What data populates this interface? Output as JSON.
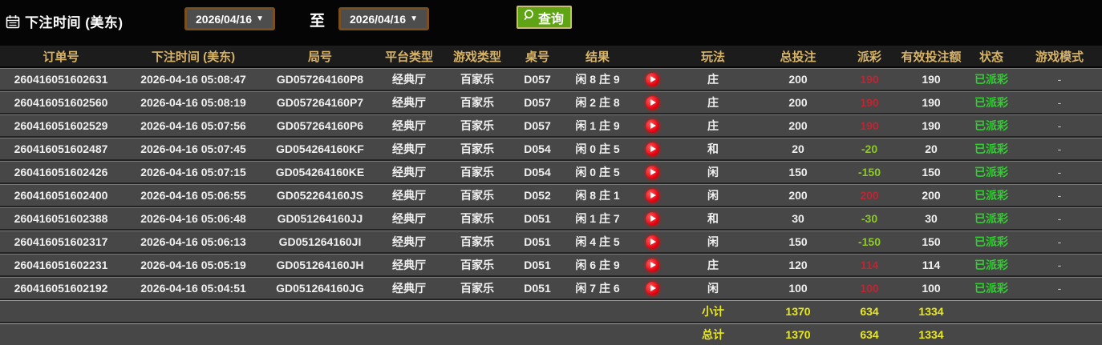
{
  "toolbar": {
    "label": "下注时间 (美东)",
    "date_from": "2026/04/16",
    "to_label": "至",
    "date_to": "2026/04/16",
    "search_label": "查询"
  },
  "table": {
    "columns": [
      {
        "key": "order",
        "label": "订单号"
      },
      {
        "key": "time",
        "label": "下注时间 (美东)"
      },
      {
        "key": "round",
        "label": "局号"
      },
      {
        "key": "platform",
        "label": "平台类型"
      },
      {
        "key": "game",
        "label": "游戏类型"
      },
      {
        "key": "table_no",
        "label": "桌号"
      },
      {
        "key": "result",
        "label": "结果"
      },
      {
        "key": "play",
        "label": ""
      },
      {
        "key": "bet_type",
        "label": "玩法"
      },
      {
        "key": "total_bet",
        "label": "总投注"
      },
      {
        "key": "payout",
        "label": "派彩"
      },
      {
        "key": "valid_bet",
        "label": "有效投注额"
      },
      {
        "key": "status",
        "label": "状态"
      },
      {
        "key": "mode",
        "label": "游戏模式"
      }
    ],
    "rows": [
      {
        "order": "260416051602631",
        "time": "2026-04-16 05:08:47",
        "round": "GD057264160P8",
        "platform": "经典厅",
        "game": "百家乐",
        "table_no": "D057",
        "result": "闲 8 庄 9",
        "bet_type": "庄",
        "total_bet": "200",
        "payout": "190",
        "valid_bet": "190",
        "status": "已派彩",
        "mode": "-"
      },
      {
        "order": "260416051602560",
        "time": "2026-04-16 05:08:19",
        "round": "GD057264160P7",
        "platform": "经典厅",
        "game": "百家乐",
        "table_no": "D057",
        "result": "闲 2 庄 8",
        "bet_type": "庄",
        "total_bet": "200",
        "payout": "190",
        "valid_bet": "190",
        "status": "已派彩",
        "mode": "-"
      },
      {
        "order": "260416051602529",
        "time": "2026-04-16 05:07:56",
        "round": "GD057264160P6",
        "platform": "经典厅",
        "game": "百家乐",
        "table_no": "D057",
        "result": "闲 1 庄 9",
        "bet_type": "庄",
        "total_bet": "200",
        "payout": "190",
        "valid_bet": "190",
        "status": "已派彩",
        "mode": "-"
      },
      {
        "order": "260416051602487",
        "time": "2026-04-16 05:07:45",
        "round": "GD054264160KF",
        "platform": "经典厅",
        "game": "百家乐",
        "table_no": "D054",
        "result": "闲 0 庄 5",
        "bet_type": "和",
        "total_bet": "20",
        "payout": "-20",
        "valid_bet": "20",
        "status": "已派彩",
        "mode": "-"
      },
      {
        "order": "260416051602426",
        "time": "2026-04-16 05:07:15",
        "round": "GD054264160KE",
        "platform": "经典厅",
        "game": "百家乐",
        "table_no": "D054",
        "result": "闲 0 庄 5",
        "bet_type": "闲",
        "total_bet": "150",
        "payout": "-150",
        "valid_bet": "150",
        "status": "已派彩",
        "mode": "-"
      },
      {
        "order": "260416051602400",
        "time": "2026-04-16 05:06:55",
        "round": "GD052264160JS",
        "platform": "经典厅",
        "game": "百家乐",
        "table_no": "D052",
        "result": "闲 8 庄 1",
        "bet_type": "闲",
        "total_bet": "200",
        "payout": "200",
        "valid_bet": "200",
        "status": "已派彩",
        "mode": "-"
      },
      {
        "order": "260416051602388",
        "time": "2026-04-16 05:06:48",
        "round": "GD051264160JJ",
        "platform": "经典厅",
        "game": "百家乐",
        "table_no": "D051",
        "result": "闲 1 庄 7",
        "bet_type": "和",
        "total_bet": "30",
        "payout": "-30",
        "valid_bet": "30",
        "status": "已派彩",
        "mode": "-"
      },
      {
        "order": "260416051602317",
        "time": "2026-04-16 05:06:13",
        "round": "GD051264160JI",
        "platform": "经典厅",
        "game": "百家乐",
        "table_no": "D051",
        "result": "闲 4 庄 5",
        "bet_type": "闲",
        "total_bet": "150",
        "payout": "-150",
        "valid_bet": "150",
        "status": "已派彩",
        "mode": "-"
      },
      {
        "order": "260416051602231",
        "time": "2026-04-16 05:05:19",
        "round": "GD051264160JH",
        "platform": "经典厅",
        "game": "百家乐",
        "table_no": "D051",
        "result": "闲 6 庄 9",
        "bet_type": "庄",
        "total_bet": "120",
        "payout": "114",
        "valid_bet": "114",
        "status": "已派彩",
        "mode": "-"
      },
      {
        "order": "260416051602192",
        "time": "2026-04-16 05:04:51",
        "round": "GD051264160JG",
        "platform": "经典厅",
        "game": "百家乐",
        "table_no": "D051",
        "result": "闲 7 庄 6",
        "bet_type": "闲",
        "total_bet": "100",
        "payout": "100",
        "valid_bet": "100",
        "status": "已派彩",
        "mode": "-"
      }
    ],
    "summary_rows": [
      {
        "bet_type": "小计",
        "total_bet": "1370",
        "payout": "634",
        "valid_bet": "1334"
      },
      {
        "bet_type": "总计",
        "total_bet": "1370",
        "payout": "634",
        "valid_bet": "1334"
      }
    ]
  },
  "colors": {
    "header_text": "#d8b469",
    "payout_win": "#bf2533",
    "payout_loss": "#8dc926",
    "status_paid": "#33cc33",
    "summary_text": "#e8e822",
    "button_green": "#5ea414",
    "date_border": "#7a4f1e"
  }
}
